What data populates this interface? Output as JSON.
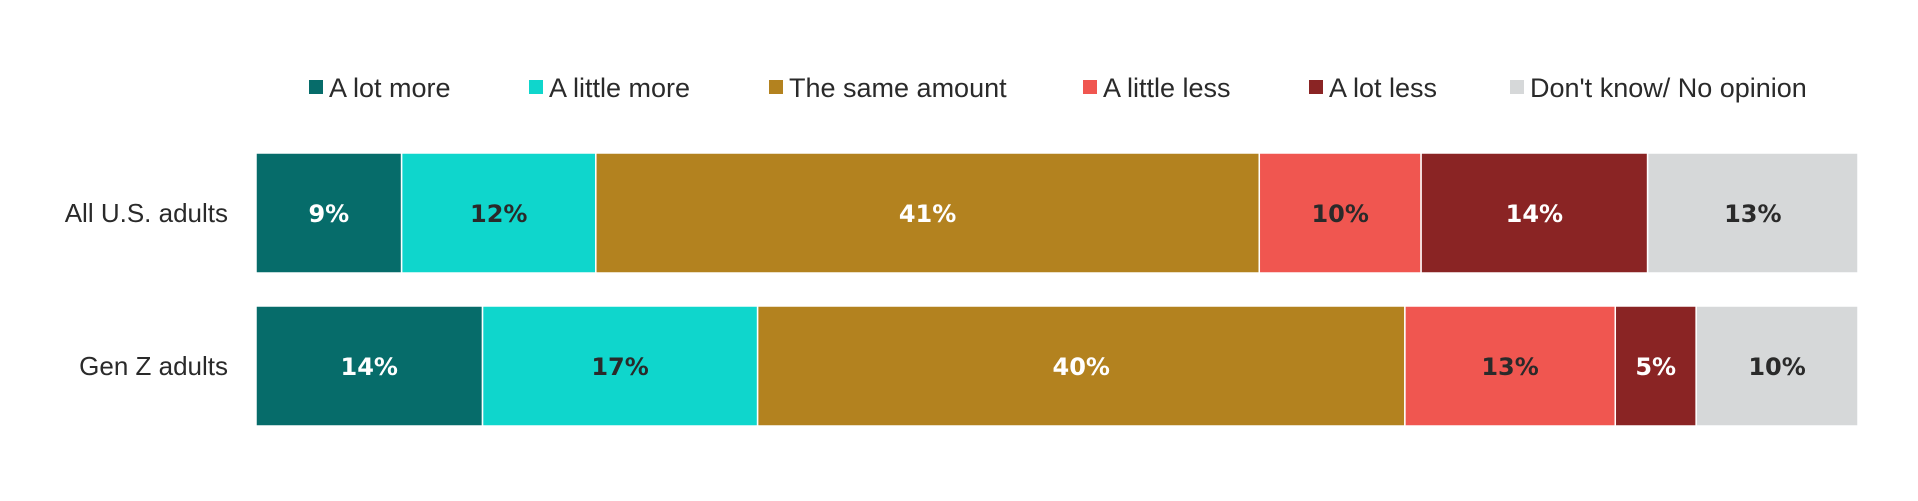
{
  "chart_data": {
    "type": "bar",
    "orientation": "horizontal",
    "stacked": true,
    "categories": [
      "All U.S. adults",
      "Gen Z adults"
    ],
    "series": [
      {
        "name": "A lot more",
        "color": "#066c6a",
        "label_color": "#ffffff",
        "values": [
          9,
          14
        ],
        "labels": [
          "9%",
          "14%"
        ]
      },
      {
        "name": "A little more",
        "color": "#0fd6cc",
        "label_color": "#2a2a2a",
        "values": [
          12,
          17
        ],
        "labels": [
          "12%",
          "17%"
        ]
      },
      {
        "name": "The same amount",
        "color": "#b3821f",
        "label_color": "#ffffff",
        "values": [
          41,
          40
        ],
        "labels": [
          "41%",
          "40%"
        ]
      },
      {
        "name": "A little less",
        "color": "#f05650",
        "label_color": "#2a2a2a",
        "values": [
          10,
          13
        ],
        "labels": [
          "10%",
          "13%"
        ]
      },
      {
        "name": "A lot less",
        "color": "#8a2424",
        "label_color": "#ffffff",
        "values": [
          14,
          5
        ],
        "labels": [
          "14%",
          "5%"
        ]
      },
      {
        "name": "Don't know/ No opinion",
        "color": "#d6d8d9",
        "label_color": "#2a2a2a",
        "values": [
          13,
          10
        ],
        "labels": [
          "13%",
          "10%"
        ]
      }
    ],
    "legend_position": "top",
    "grid": false
  }
}
